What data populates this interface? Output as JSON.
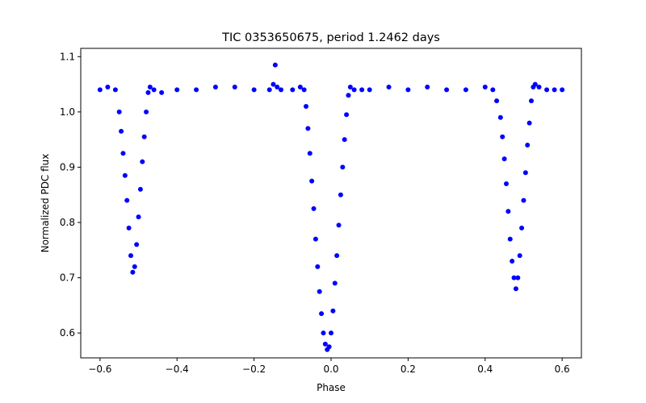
{
  "chart_data": {
    "type": "scatter",
    "title": "TIC 0353650675, period 1.2462 days",
    "xlabel": "Phase",
    "ylabel": "Normalized PDC flux",
    "xlim": [
      -0.65,
      0.65
    ],
    "ylim": [
      0.555,
      1.115
    ],
    "xticks": [
      -0.6,
      -0.4,
      -0.2,
      0.0,
      0.2,
      0.4,
      0.6
    ],
    "xtick_labels": [
      "−0.6",
      "−0.4",
      "−0.2",
      "0.0",
      "0.2",
      "0.4",
      "0.6"
    ],
    "yticks": [
      0.6,
      0.7,
      0.8,
      0.9,
      1.0,
      1.1
    ],
    "ytick_labels": [
      "0.6",
      "0.7",
      "0.8",
      "0.9",
      "1.0",
      "1.1"
    ],
    "grid": false,
    "legend": "none",
    "marker_color": "#0000ff",
    "series": [
      {
        "x": [
          -0.6,
          -0.58,
          -0.56,
          -0.55,
          -0.545,
          -0.54,
          -0.535,
          -0.53,
          -0.525,
          -0.52,
          -0.515,
          -0.51,
          -0.505,
          -0.5,
          -0.495,
          -0.49,
          -0.485,
          -0.48,
          -0.475,
          -0.47,
          -0.46,
          -0.44,
          -0.4,
          -0.35,
          -0.3,
          -0.25,
          -0.2,
          -0.16,
          -0.15,
          -0.145,
          -0.14,
          -0.13,
          -0.1,
          -0.08,
          -0.07,
          -0.065,
          -0.06,
          -0.055,
          -0.05,
          -0.045,
          -0.04,
          -0.035,
          -0.03,
          -0.025,
          -0.02,
          -0.015,
          -0.01,
          -0.005,
          0.0,
          0.005,
          0.01,
          0.015,
          0.02,
          0.025,
          0.03,
          0.035,
          0.04,
          0.045,
          0.05,
          0.06,
          0.08,
          0.1,
          0.15,
          0.2,
          0.25,
          0.3,
          0.35,
          0.4,
          0.42,
          0.43,
          0.44,
          0.445,
          0.45,
          0.455,
          0.46,
          0.465,
          0.47,
          0.475,
          0.48,
          0.485,
          0.49,
          0.495,
          0.5,
          0.505,
          0.51,
          0.515,
          0.52,
          0.525,
          0.53,
          0.54,
          0.56,
          0.58,
          0.6
        ],
        "y": [
          1.04,
          1.045,
          1.04,
          1.0,
          0.965,
          0.925,
          0.885,
          0.84,
          0.79,
          0.74,
          0.71,
          0.72,
          0.76,
          0.81,
          0.86,
          0.91,
          0.955,
          1.0,
          1.035,
          1.045,
          1.04,
          1.035,
          1.04,
          1.04,
          1.045,
          1.045,
          1.04,
          1.04,
          1.05,
          1.085,
          1.045,
          1.04,
          1.04,
          1.045,
          1.04,
          1.01,
          0.97,
          0.925,
          0.875,
          0.825,
          0.77,
          0.72,
          0.675,
          0.635,
          0.6,
          0.58,
          0.57,
          0.575,
          0.6,
          0.64,
          0.69,
          0.74,
          0.795,
          0.85,
          0.9,
          0.95,
          0.995,
          1.03,
          1.045,
          1.04,
          1.04,
          1.04,
          1.045,
          1.04,
          1.045,
          1.04,
          1.04,
          1.045,
          1.04,
          1.02,
          0.99,
          0.955,
          0.915,
          0.87,
          0.82,
          0.77,
          0.73,
          0.7,
          0.68,
          0.7,
          0.74,
          0.79,
          0.84,
          0.89,
          0.94,
          0.98,
          1.02,
          1.045,
          1.05,
          1.045,
          1.04,
          1.04,
          1.04
        ]
      }
    ]
  }
}
